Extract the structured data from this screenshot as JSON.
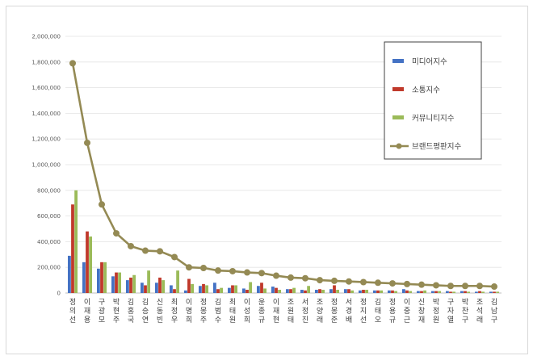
{
  "chart_data": {
    "type": "bar",
    "title": "",
    "xlabel": "",
    "ylabel": "",
    "ylim": [
      0,
      2000000
    ],
    "yticks": [
      "0",
      "200,000",
      "400,000",
      "600,000",
      "800,000",
      "1,000,000",
      "1,200,000",
      "1,400,000",
      "1,600,000",
      "1,800,000",
      "2,000,000"
    ],
    "grid": true,
    "legend_position": "top-right",
    "categories": [
      "정의선",
      "이재용",
      "구광모",
      "박현주",
      "김홍국",
      "김승연",
      "신동빈",
      "최정우",
      "이명희",
      "정몽주",
      "김범수",
      "최태원",
      "이성희",
      "윤종규",
      "이재현",
      "조원태",
      "서정진",
      "조양래",
      "정몽준",
      "서경배",
      "정지선",
      "김태오",
      "정용규",
      "이중근",
      "신창재",
      "박정원",
      "구자열",
      "박찬구",
      "조석래",
      "김남구"
    ],
    "series": [
      {
        "name": "미디어지수",
        "type": "bar",
        "color": "#4472c4",
        "values": [
          290000,
          240000,
          190000,
          130000,
          100000,
          80000,
          80000,
          60000,
          20000,
          55000,
          80000,
          40000,
          35000,
          55000,
          50000,
          30000,
          25000,
          25000,
          30000,
          30000,
          20000,
          20000,
          20000,
          30000,
          15000,
          15000,
          15000,
          15000,
          10000,
          10000
        ]
      },
      {
        "name": "소통지수",
        "type": "bar",
        "color": "#c0392b",
        "values": [
          690000,
          480000,
          240000,
          160000,
          120000,
          60000,
          120000,
          30000,
          110000,
          70000,
          30000,
          60000,
          25000,
          80000,
          40000,
          30000,
          20000,
          30000,
          60000,
          30000,
          25000,
          20000,
          20000,
          20000,
          15000,
          15000,
          10000,
          15000,
          15000,
          10000
        ]
      },
      {
        "name": "커뮤니티지수",
        "type": "bar",
        "color": "#9bbb59",
        "values": [
          800000,
          440000,
          240000,
          160000,
          140000,
          175000,
          100000,
          175000,
          70000,
          60000,
          40000,
          60000,
          85000,
          35000,
          25000,
          40000,
          55000,
          25000,
          25000,
          20000,
          25000,
          20000,
          15000,
          15000,
          20000,
          15000,
          10000,
          10000,
          10000,
          10000
        ]
      },
      {
        "name": "브랜드평판지수",
        "type": "line",
        "color": "#948a54",
        "values": [
          1790000,
          1170000,
          690000,
          465000,
          365000,
          330000,
          325000,
          280000,
          200000,
          195000,
          175000,
          170000,
          160000,
          155000,
          135000,
          120000,
          115000,
          100000,
          95000,
          90000,
          85000,
          80000,
          75000,
          70000,
          65000,
          60000,
          55000,
          55000,
          55000,
          50000
        ]
      }
    ]
  }
}
